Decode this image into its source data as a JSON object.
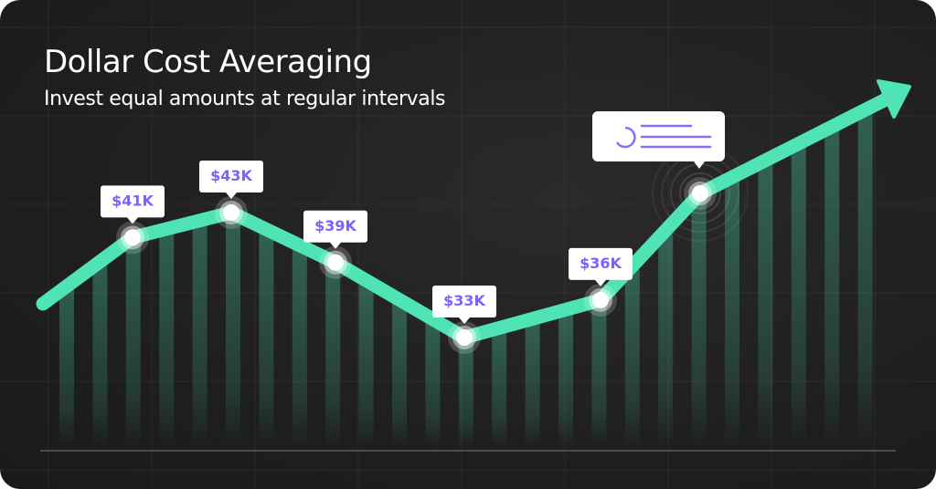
{
  "title": "Dollar Cost Averaging",
  "subtitle": "Invest equal amounts at regular intervals",
  "colors": {
    "background": "#1f1f1f",
    "line": "#4fe3b5",
    "label_text": "#7b61ff",
    "bars": "#4a6b60",
    "tooltip_icon": "#8a6cff"
  },
  "chart_data": {
    "type": "line",
    "title": "Dollar Cost Averaging",
    "subtitle": "Invest equal amounts at regular intervals",
    "labels": [
      "$41K",
      "$43K",
      "$39K",
      "$33K",
      "$36K"
    ],
    "values": [
      41,
      43,
      39,
      33,
      36
    ],
    "trend_end": "up-arrow",
    "background_bars": true,
    "grid": true,
    "tooltip_icons": [
      "circle-loader-icon",
      "text-lines-icon"
    ]
  }
}
